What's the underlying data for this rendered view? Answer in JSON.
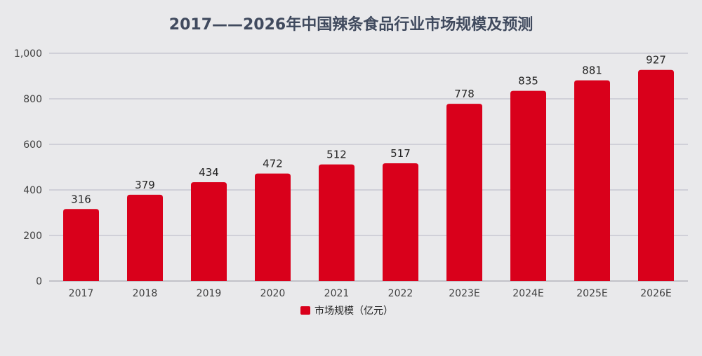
{
  "chart_data": {
    "type": "bar",
    "title": "2017——2026年中国辣条食品行业市场规模及预测",
    "categories": [
      "2017",
      "2018",
      "2019",
      "2020",
      "2021",
      "2022",
      "2023E",
      "2024E",
      "2025E",
      "2026E"
    ],
    "series": [
      {
        "name": "市场规模（亿元）",
        "values": [
          316,
          379,
          434,
          472,
          512,
          517,
          778,
          835,
          881,
          927
        ],
        "color": "#d9001b"
      }
    ],
    "ylim": [
      0,
      1000
    ],
    "yticks": [
      "0",
      "200",
      "400",
      "600",
      "800",
      "1,000"
    ],
    "ytick_values": [
      0,
      200,
      400,
      600,
      800,
      1000
    ],
    "grid": true,
    "legend_position": "bottom",
    "xlabel": "",
    "ylabel": ""
  }
}
